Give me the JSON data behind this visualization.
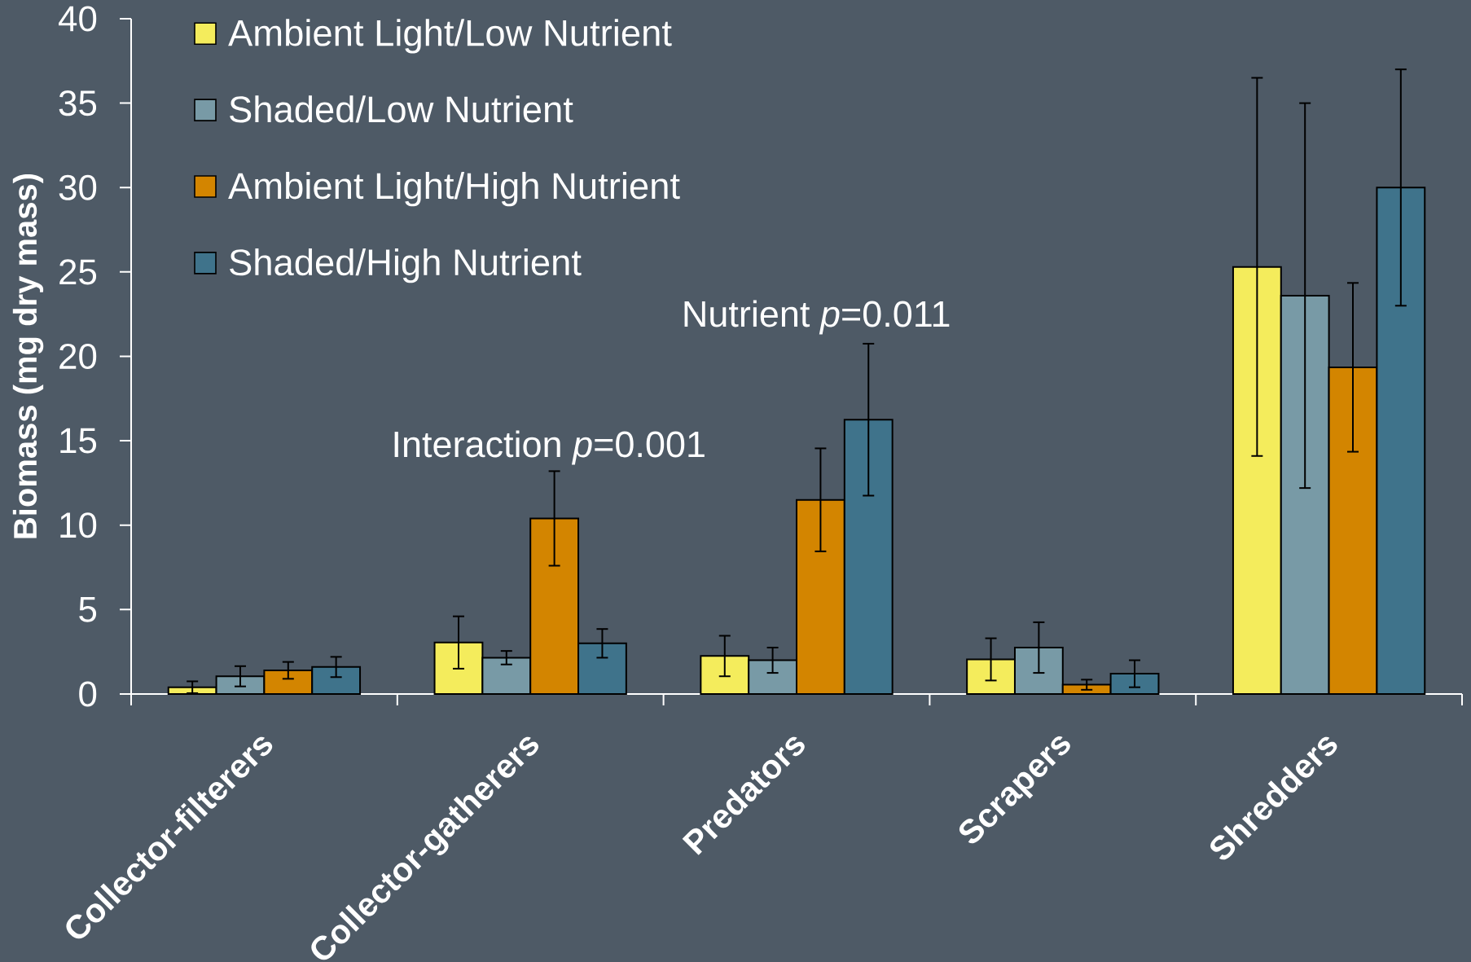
{
  "chart_data": {
    "type": "bar",
    "ylabel": "Biomass (mg dry mass)",
    "categories": [
      "Collector-filterers",
      "Collector-gatherers",
      "Predators",
      "Scrapers",
      "Shredders"
    ],
    "series": [
      {
        "name": "Ambient Light/Low Nutrient",
        "color": "#f4ec5c",
        "values": [
          0.4,
          3.05,
          2.25,
          2.05,
          25.3
        ],
        "errors": [
          0.35,
          1.55,
          1.2,
          1.25,
          11.2
        ]
      },
      {
        "name": "Shaded/Low Nutrient",
        "color": "#789aa6",
        "values": [
          1.05,
          2.15,
          2.0,
          2.75,
          23.6
        ],
        "errors": [
          0.6,
          0.4,
          0.75,
          1.5,
          11.4
        ]
      },
      {
        "name": "Ambient Light/High Nutrient",
        "color": "#d38500",
        "values": [
          1.4,
          10.4,
          11.5,
          0.55,
          19.35
        ],
        "errors": [
          0.5,
          2.8,
          3.05,
          0.3,
          5.0
        ]
      },
      {
        "name": "Shaded/High Nutrient",
        "color": "#3f738b",
        "values": [
          1.6,
          3.0,
          16.25,
          1.2,
          30.0
        ],
        "errors": [
          0.6,
          0.85,
          4.5,
          0.8,
          7.0
        ]
      }
    ],
    "ylim": [
      0,
      40
    ],
    "yticks": [
      0,
      5,
      10,
      15,
      20,
      25,
      30,
      35,
      40
    ],
    "legend": "top left",
    "annotations": [
      "Interaction *p*=0.001",
      "Nutrient *p*=0.011"
    ]
  }
}
